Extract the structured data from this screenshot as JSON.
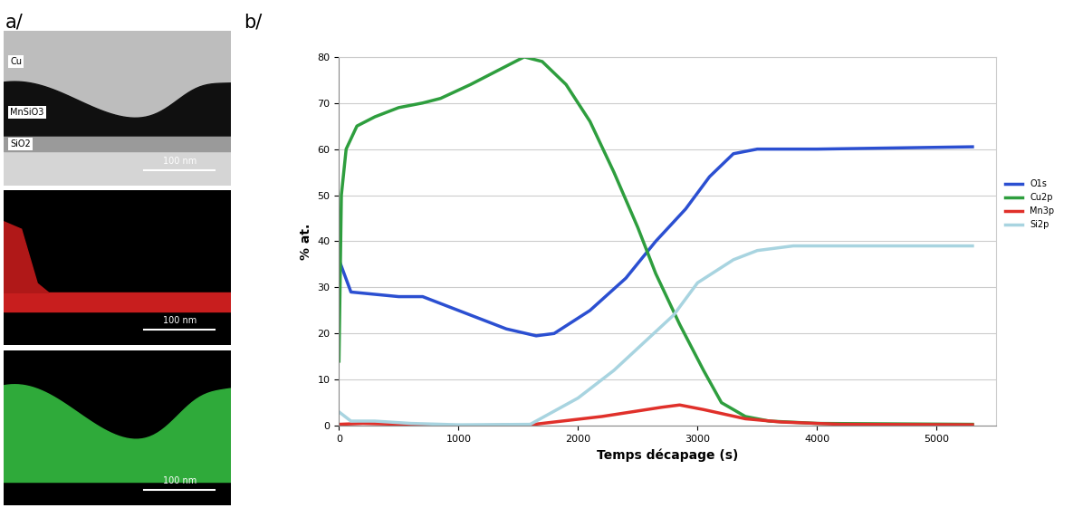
{
  "panel_a": {
    "panel_label": "a/",
    "images": [
      {
        "labels": [
          "Cu",
          "MnSiO3",
          "SiO2"
        ],
        "scale_bar": "100 nm"
      },
      {
        "labels": [],
        "scale_bar": "100 nm"
      },
      {
        "labels": [],
        "scale_bar": "100 nm"
      }
    ]
  },
  "chart_data": {
    "type": "line",
    "panel_label": "b/",
    "xlabel": "Temps décapage (s)",
    "ylabel": "% at.",
    "xlim": [
      0,
      5500
    ],
    "xticks": [
      0,
      1000,
      2000,
      3000,
      4000,
      5000
    ],
    "ylim": [
      0,
      80
    ],
    "yticks": [
      0,
      10,
      20,
      30,
      40,
      50,
      60,
      70,
      80
    ],
    "grid": "y",
    "legend": "right",
    "series": [
      {
        "name": "O1s",
        "color": "#2b4fd1",
        "x": [
          0,
          100,
          300,
          500,
          700,
          1000,
          1400,
          1650,
          1800,
          2100,
          2400,
          2650,
          2900,
          3100,
          3300,
          3500,
          4000,
          5300
        ],
        "values": [
          36,
          29,
          28.5,
          28,
          28,
          25,
          21,
          19.5,
          20,
          25,
          32,
          40,
          47,
          54,
          59,
          60,
          60,
          60.5
        ]
      },
      {
        "name": "Cu2p",
        "color": "#2e9e3e",
        "x": [
          0,
          20,
          60,
          150,
          300,
          500,
          700,
          850,
          1100,
          1400,
          1550,
          1700,
          1900,
          2100,
          2300,
          2500,
          2650,
          2850,
          3050,
          3200,
          3400,
          3600,
          4000,
          5300
        ],
        "values": [
          14,
          50,
          60,
          65,
          67,
          69,
          70,
          71,
          74,
          78,
          80,
          79,
          74,
          66,
          55,
          43,
          33,
          22,
          12,
          5,
          2,
          1,
          0.5,
          0.3
        ]
      },
      {
        "name": "Mn3p",
        "color": "#e0302a",
        "x": [
          0,
          200,
          1000,
          1600,
          2200,
          2700,
          2850,
          3050,
          3400,
          3700,
          4200,
          5300
        ],
        "values": [
          0.3,
          0.5,
          0,
          0.2,
          2,
          4,
          4.5,
          3.5,
          1.5,
          0.8,
          0.3,
          0.2
        ]
      },
      {
        "name": "Si2p",
        "color": "#a8d4e0",
        "x": [
          0,
          100,
          300,
          600,
          1000,
          1600,
          2000,
          2300,
          2550,
          2800,
          3000,
          3300,
          3500,
          3800,
          4000,
          5300
        ],
        "values": [
          3,
          1,
          1,
          0.5,
          0.2,
          0.3,
          6,
          12,
          18,
          24,
          31,
          36,
          38,
          39,
          39,
          39
        ]
      }
    ]
  }
}
